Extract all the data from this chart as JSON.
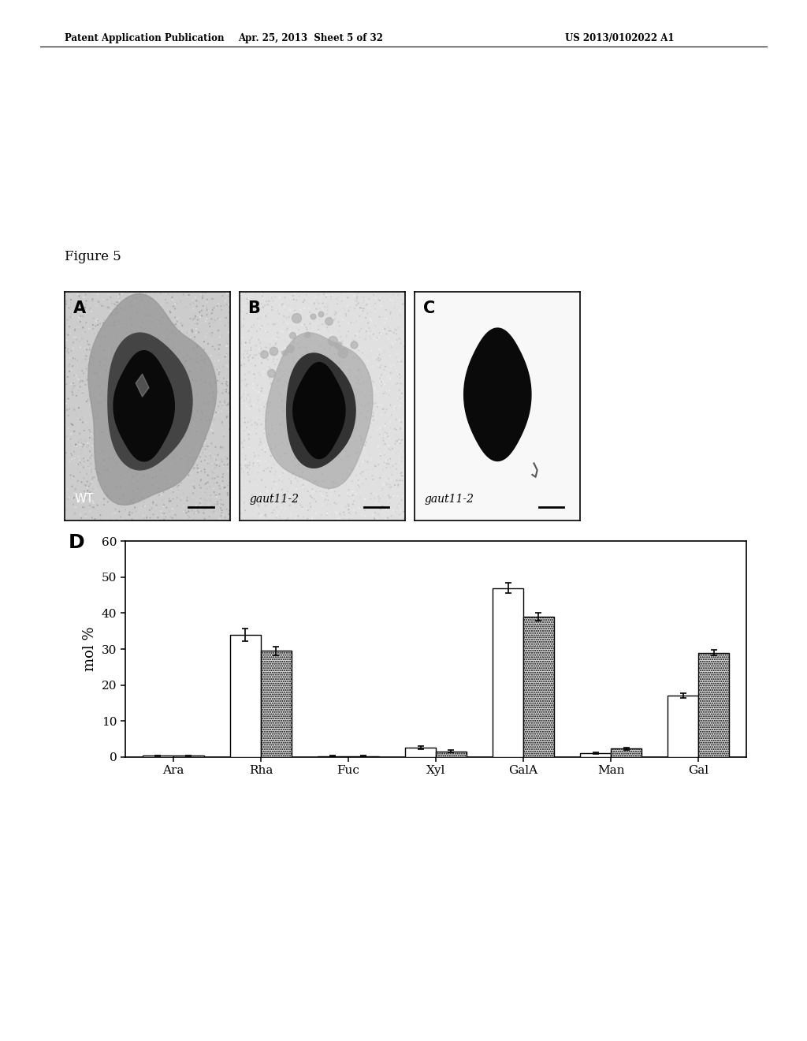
{
  "header_left": "Patent Application Publication",
  "header_center": "Apr. 25, 2013  Sheet 5 of 32",
  "header_right": "US 2013/0102022 A1",
  "figure_label": "Figure 5",
  "panel_A_label": "WT",
  "panel_B_label": "gaut11-2",
  "panel_C_label": "gaut11-2",
  "bar_categories": [
    "Ara",
    "Rha",
    "Fuc",
    "Xyl",
    "GalA",
    "Man",
    "Gal"
  ],
  "wt_values": [
    0.3,
    34.0,
    0.2,
    2.5,
    47.0,
    1.0,
    17.0
  ],
  "mut_values": [
    0.3,
    29.5,
    0.2,
    1.5,
    39.0,
    2.3,
    29.0
  ],
  "wt_errors": [
    0.15,
    1.8,
    0.1,
    0.4,
    1.5,
    0.15,
    0.7
  ],
  "mut_errors": [
    0.15,
    1.2,
    0.1,
    0.3,
    1.0,
    0.3,
    0.8
  ],
  "ylabel": "mol %",
  "ylim": [
    0,
    60
  ],
  "yticks": [
    0,
    10,
    20,
    30,
    40,
    50,
    60
  ],
  "bar_width": 0.35,
  "wt_color": "white",
  "background_color": "white",
  "tick_fontsize": 11,
  "label_fontsize": 13,
  "panel_bg_A": "#c8c8c8",
  "panel_bg_B": "#e0e0e0",
  "panel_bg_C": "#f5f5f5"
}
